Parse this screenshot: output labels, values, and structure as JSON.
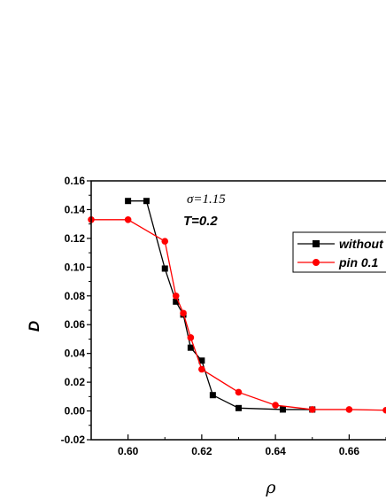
{
  "chart_data": {
    "type": "line",
    "xlabel": "ρ",
    "ylabel": "D",
    "xlim": [
      0.59,
      0.67
    ],
    "ylim": [
      -0.02,
      0.16
    ],
    "x_ticks": [
      "0.60",
      "0.62",
      "0.64",
      "0.66"
    ],
    "x_tick_values": [
      0.6,
      0.62,
      0.64,
      0.66
    ],
    "y_ticks": [
      "-0.02",
      "0.00",
      "0.02",
      "0.04",
      "0.06",
      "0.08",
      "0.10",
      "0.12",
      "0.14",
      "0.16"
    ],
    "y_tick_values": [
      -0.02,
      0.0,
      0.02,
      0.04,
      0.06,
      0.08,
      0.1,
      0.12,
      0.14,
      0.16
    ],
    "annotations": [
      "σ=1.15",
      "T=0.2"
    ],
    "legend_position": "right",
    "series": [
      {
        "name": "without",
        "color": "#000000",
        "marker": "square",
        "x": [
          0.6,
          0.605,
          0.61,
          0.613,
          0.615,
          0.617,
          0.62,
          0.623,
          0.63,
          0.642,
          0.65
        ],
        "y": [
          0.146,
          0.146,
          0.099,
          0.076,
          0.067,
          0.044,
          0.035,
          0.011,
          0.002,
          0.001,
          0.001
        ]
      },
      {
        "name": "pin 0.1",
        "color": "#ff0000",
        "marker": "circle",
        "x": [
          0.59,
          0.6,
          0.61,
          0.613,
          0.615,
          0.617,
          0.62,
          0.63,
          0.64,
          0.65,
          0.66,
          0.67
        ],
        "y": [
          0.133,
          0.133,
          0.118,
          0.08,
          0.068,
          0.051,
          0.029,
          0.013,
          0.004,
          0.001,
          0.001,
          0.0005
        ]
      }
    ]
  }
}
